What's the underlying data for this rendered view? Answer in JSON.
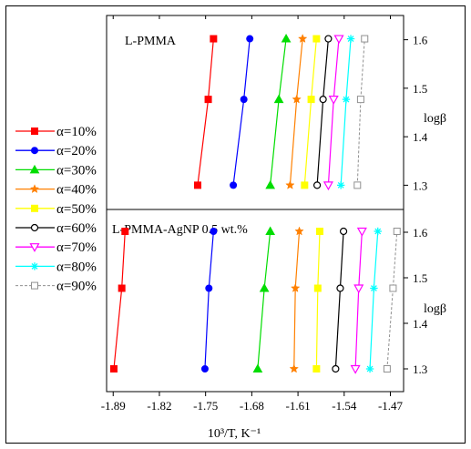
{
  "chart_data": {
    "type": "line",
    "xlabel": "10³/T, K⁻¹",
    "ylabel": "logβ",
    "xlim": [
      -1.9,
      -1.45
    ],
    "ylim": [
      1.25,
      1.65
    ],
    "xticks": [
      "-1.89",
      "-1.82",
      "-1.75",
      "-1.68",
      "-1.61",
      "-1.54",
      "-1.47"
    ],
    "yticks": [
      "1.3",
      "1.4",
      "1.5",
      "1.6"
    ],
    "y_levels": [
      1.3,
      1.477,
      1.602
    ],
    "legend_position": "left",
    "grid": false,
    "series_styles": [
      {
        "name": "α=10%",
        "color": "#ff0000",
        "marker": "square-filled",
        "dash": false
      },
      {
        "name": "α=20%",
        "color": "#0000ff",
        "marker": "circle-filled",
        "dash": false
      },
      {
        "name": "α=30%",
        "color": "#00dd00",
        "marker": "triangle-filled",
        "dash": false
      },
      {
        "name": "α=40%",
        "color": "#ff8000",
        "marker": "star",
        "dash": false
      },
      {
        "name": "α=50%",
        "color": "#ffff00",
        "marker": "square-filled",
        "dash": false
      },
      {
        "name": "α=60%",
        "color": "#000000",
        "marker": "circle-open",
        "dash": false
      },
      {
        "name": "α=70%",
        "color": "#ff00ff",
        "marker": "triangle-down-open",
        "dash": false
      },
      {
        "name": "α=80%",
        "color": "#00ffff",
        "marker": "asterisk",
        "dash": false
      },
      {
        "name": "α=90%",
        "color": "#909090",
        "marker": "square-open",
        "dash": true
      }
    ],
    "panels": [
      {
        "title": "L-PMMA",
        "series_x": [
          [
            -1.762,
            -1.746,
            -1.738
          ],
          [
            -1.708,
            -1.692,
            -1.683
          ],
          [
            -1.652,
            -1.639,
            -1.628
          ],
          [
            -1.622,
            -1.612,
            -1.603
          ],
          [
            -1.6,
            -1.59,
            -1.582
          ],
          [
            -1.581,
            -1.572,
            -1.564
          ],
          [
            -1.564,
            -1.556,
            -1.548
          ],
          [
            -1.545,
            -1.537,
            -1.53
          ],
          [
            -1.52,
            -1.515,
            -1.509
          ]
        ]
      },
      {
        "title": "L-PMMA-AgNP 0.5 wt.%",
        "series_x": [
          [
            -1.889,
            -1.877,
            -1.872
          ],
          [
            -1.751,
            -1.745,
            -1.738
          ],
          [
            -1.671,
            -1.661,
            -1.652
          ],
          [
            -1.616,
            -1.614,
            -1.608
          ],
          [
            -1.582,
            -1.58,
            -1.577
          ],
          [
            -1.553,
            -1.546,
            -1.541
          ],
          [
            -1.523,
            -1.518,
            -1.513
          ],
          [
            -1.501,
            -1.495,
            -1.489
          ],
          [
            -1.475,
            -1.466,
            -1.46
          ]
        ]
      }
    ]
  }
}
